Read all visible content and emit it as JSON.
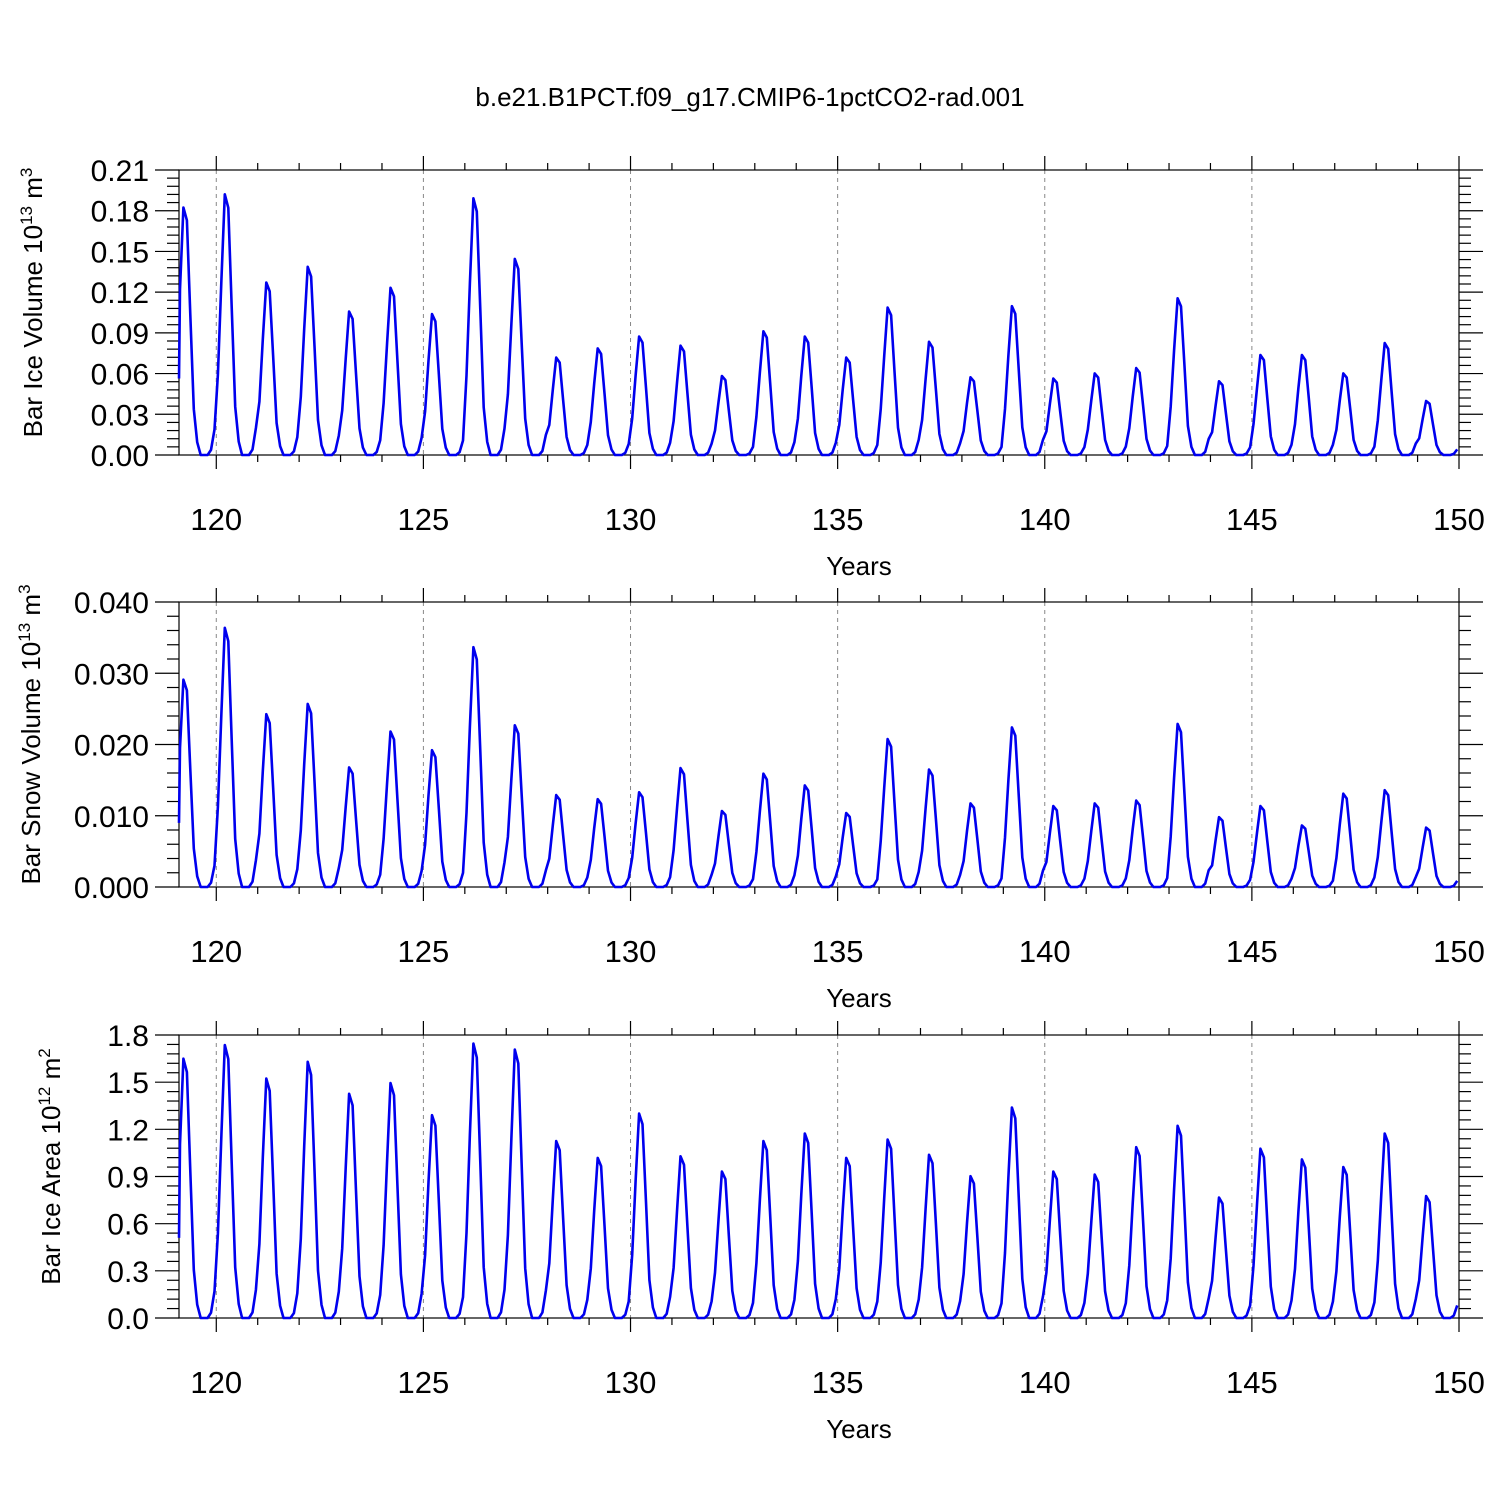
{
  "title": "b.e21.B1PCT.f09_g17.CMIP6-1pctCO2-rad.001",
  "colors": {
    "series": "#0000ee",
    "grid": "#888888",
    "axes": "#000000"
  },
  "chart_data": [
    {
      "type": "line",
      "ylabel": {
        "text": "Bar Ice Volume 10",
        "exp": "13",
        "unit": " m",
        "unit_exp": "3"
      },
      "xlabel": "Years",
      "xlim": [
        119.1,
        150
      ],
      "ylim": [
        0,
        0.21
      ],
      "xticks": [
        120,
        125,
        130,
        135,
        140,
        145,
        150
      ],
      "xtick_labels": [
        "120",
        "125",
        "130",
        "135",
        "140",
        "145",
        "150"
      ],
      "yticks": [
        0,
        0.03,
        0.06,
        0.09,
        0.12,
        0.15,
        0.18,
        0.21
      ],
      "ytick_labels": [
        "0.00",
        "0.03",
        "0.06",
        "0.09",
        "0.12",
        "0.15",
        "0.18",
        "0.21"
      ],
      "grid_x": [
        120,
        125,
        130,
        135,
        140,
        145
      ],
      "start_year": 119.04,
      "series": [
        {
          "color": "#0000ee",
          "annual_peaks": [
            0.188,
            0.198,
            0.131,
            0.143,
            0.109,
            0.127,
            0.107,
            0.195,
            0.149,
            0.074,
            0.081,
            0.09,
            0.083,
            0.06,
            0.094,
            0.09,
            0.074,
            0.112,
            0.086,
            0.059,
            0.113,
            0.058,
            0.062,
            0.066,
            0.119,
            0.056,
            0.076,
            0.076,
            0.062,
            0.085,
            0.041
          ]
        }
      ]
    },
    {
      "type": "line",
      "ylabel": {
        "text": "Bar Snow Volume 10",
        "exp": "13",
        "unit": " m",
        "unit_exp": "3"
      },
      "xlabel": "Years",
      "xlim": [
        119.1,
        150
      ],
      "ylim": [
        0,
        0.04
      ],
      "xticks": [
        120,
        125,
        130,
        135,
        140,
        145,
        150
      ],
      "xtick_labels": [
        "120",
        "125",
        "130",
        "135",
        "140",
        "145",
        "150"
      ],
      "yticks": [
        0,
        0.01,
        0.02,
        0.03,
        0.04
      ],
      "ytick_labels": [
        "0.000",
        "0.010",
        "0.020",
        "0.030",
        "0.040"
      ],
      "grid_x": [
        120,
        125,
        130,
        135,
        140,
        145
      ],
      "start_year": 119.04,
      "series": [
        {
          "color": "#0000ee",
          "annual_peaks": [
            0.03,
            0.0375,
            0.025,
            0.0265,
            0.0173,
            0.0225,
            0.0198,
            0.0347,
            0.0234,
            0.0133,
            0.0127,
            0.0137,
            0.0172,
            0.011,
            0.0164,
            0.0147,
            0.0107,
            0.0214,
            0.017,
            0.0121,
            0.0231,
            0.0117,
            0.0121,
            0.0125,
            0.0236,
            0.0101,
            0.0117,
            0.0089,
            0.0135,
            0.014,
            0.0086
          ]
        }
      ]
    },
    {
      "type": "line",
      "ylabel": {
        "text": "Bar Ice Area 10",
        "exp": "12",
        "unit": " m",
        "unit_exp": "2"
      },
      "xlabel": "Years",
      "xlim": [
        119.1,
        150
      ],
      "ylim": [
        0,
        1.8
      ],
      "xticks": [
        120,
        125,
        130,
        135,
        140,
        145,
        150
      ],
      "xtick_labels": [
        "120",
        "125",
        "130",
        "135",
        "140",
        "145",
        "150"
      ],
      "yticks": [
        0,
        0.3,
        0.6,
        0.9,
        1.2,
        1.5,
        1.8
      ],
      "ytick_labels": [
        "0.0",
        "0.3",
        "0.6",
        "0.9",
        "1.2",
        "1.5",
        "1.8"
      ],
      "grid_x": [
        120,
        125,
        130,
        135,
        140,
        145
      ],
      "start_year": 119.04,
      "series": [
        {
          "color": "#0000ee",
          "annual_peaks": [
            1.7,
            1.79,
            1.57,
            1.68,
            1.47,
            1.54,
            1.33,
            1.8,
            1.76,
            1.16,
            1.05,
            1.34,
            1.06,
            0.96,
            1.16,
            1.21,
            1.05,
            1.17,
            1.07,
            0.93,
            1.38,
            0.96,
            0.94,
            1.12,
            1.26,
            0.79,
            1.11,
            1.04,
            0.99,
            1.21,
            0.8
          ]
        }
      ]
    }
  ]
}
